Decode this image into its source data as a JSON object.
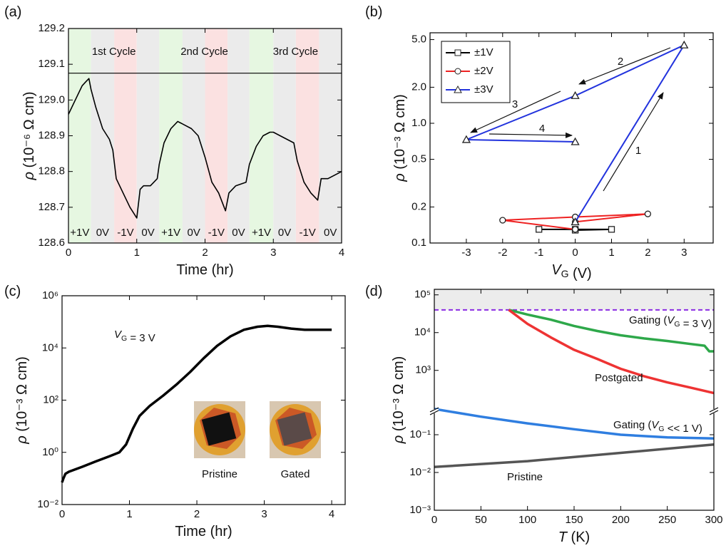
{
  "chart_data": [
    {
      "type": "line",
      "label": "(a)",
      "xlabel": "Time (hr)",
      "ylabel": "ρ (10⁻⁶ Ω cm)",
      "xlim": [
        0,
        4
      ],
      "ylim": [
        128.6,
        129.2
      ],
      "xticks": [
        0,
        1,
        2,
        3,
        4
      ],
      "yticks": [
        128.6,
        128.7,
        128.8,
        128.9,
        {
          "value": 129,
          "label": "129.0"
        },
        129.1,
        129.2
      ],
      "reference_line": 129.075,
      "cycles": [
        "1st Cycle",
        "2nd Cycle",
        "3rd Cycle"
      ],
      "regions": [
        {
          "start": 0,
          "end": 0.33,
          "label": "+1V",
          "color": "#e6f7e1"
        },
        {
          "start": 0.33,
          "end": 0.67,
          "label": "0V",
          "color": "#ebebeb"
        },
        {
          "start": 0.67,
          "end": 1.0,
          "label": "-1V",
          "color": "#fbe1e1"
        },
        {
          "start": 1.0,
          "end": 1.33,
          "label": "0V",
          "color": "#ebebeb"
        },
        {
          "start": 1.33,
          "end": 1.67,
          "label": "+1V",
          "color": "#e6f7e1"
        },
        {
          "start": 1.67,
          "end": 2.0,
          "label": "0V",
          "color": "#ebebeb"
        },
        {
          "start": 2.0,
          "end": 2.33,
          "label": "-1V",
          "color": "#fbe1e1"
        },
        {
          "start": 2.33,
          "end": 2.65,
          "label": "0V",
          "color": "#ebebeb"
        },
        {
          "start": 2.65,
          "end": 3.0,
          "label": "+1V",
          "color": "#e6f7e1"
        },
        {
          "start": 3.0,
          "end": 3.33,
          "label": "0V",
          "color": "#ebebeb"
        },
        {
          "start": 3.33,
          "end": 3.67,
          "label": "-1V",
          "color": "#fbe1e1"
        },
        {
          "start": 3.67,
          "end": 4.0,
          "label": "0V",
          "color": "#ebebeb"
        }
      ],
      "x": [
        0,
        0.1,
        0.2,
        0.25,
        0.3,
        0.33,
        0.4,
        0.5,
        0.6,
        0.65,
        0.7,
        0.8,
        0.9,
        1.0,
        1.05,
        1.1,
        1.2,
        1.3,
        1.33,
        1.4,
        1.5,
        1.6,
        1.7,
        1.8,
        1.9,
        2.0,
        2.1,
        2.2,
        2.3,
        2.35,
        2.45,
        2.6,
        2.65,
        2.75,
        2.85,
        2.95,
        3.0,
        3.1,
        3.3,
        3.35,
        3.45,
        3.55,
        3.65,
        3.7,
        3.8,
        3.9,
        4.0
      ],
      "values": [
        128.96,
        129.0,
        129.04,
        129.05,
        129.06,
        129.03,
        128.98,
        128.92,
        128.89,
        128.86,
        128.78,
        128.74,
        128.7,
        128.67,
        128.75,
        128.76,
        128.76,
        128.78,
        128.82,
        128.88,
        128.92,
        128.94,
        128.93,
        128.92,
        128.9,
        128.84,
        128.77,
        128.74,
        128.69,
        128.74,
        128.76,
        128.77,
        128.82,
        128.87,
        128.9,
        128.91,
        128.91,
        128.9,
        128.88,
        128.83,
        128.77,
        128.74,
        128.72,
        128.78,
        128.78,
        128.79,
        128.8
      ],
      "color": "#000000"
    },
    {
      "type": "line",
      "label": "(b)",
      "xlabel": "VG (V)",
      "ylabel": "ρ (10⁻³ Ω cm)",
      "xlim": [
        -4,
        3.8
      ],
      "ylim": [
        0.1,
        5.7
      ],
      "ylog": true,
      "xticks": [
        -3,
        -2,
        -1,
        0,
        1,
        2,
        3
      ],
      "yticks": [
        0.1,
        0.2,
        0.5,
        {
          "value": 1,
          "label": "1.0"
        },
        {
          "value": 2,
          "label": "2.0"
        },
        {
          "value": 5,
          "label": "5.0"
        }
      ],
      "legend": "upper left",
      "arrow_labels": [
        "1",
        "2",
        "3",
        "4"
      ],
      "series": [
        {
          "name": "±1V",
          "color": "#000000",
          "marker": "square",
          "x": [
            -1,
            0,
            1,
            0
          ],
          "values": [
            0.13,
            0.13,
            0.13,
            0.128
          ]
        },
        {
          "name": "±2V",
          "color": "#ee2222",
          "marker": "circle",
          "x": [
            0,
            2,
            0,
            -2,
            0
          ],
          "values": [
            0.15,
            0.175,
            0.165,
            0.155,
            0.13
          ]
        },
        {
          "name": "±3V",
          "color": "#2233dd",
          "marker": "triangle",
          "x": [
            0,
            3,
            0,
            -3,
            0
          ],
          "values": [
            0.15,
            4.5,
            1.7,
            0.73,
            0.7
          ]
        }
      ]
    },
    {
      "type": "line",
      "label": "(c)",
      "xlabel": "Time (hr)",
      "ylabel": "ρ (10⁻³ Ω cm)",
      "xlim": [
        0,
        4.2
      ],
      "ylim": [
        0.01,
        1000000
      ],
      "ylog": true,
      "xticks": [
        0,
        1,
        2,
        3,
        4
      ],
      "yticks": [
        {
          "value": 0.01,
          "label": "10⁻²"
        },
        {
          "value": 1,
          "label": "10⁰"
        },
        {
          "value": 100,
          "label": "10²"
        },
        {
          "value": 10000,
          "label": "10⁴"
        },
        {
          "value": 1000000,
          "label": "10⁶"
        }
      ],
      "annotation": "VG = 3 V",
      "inset_labels": [
        "Pristine",
        "Gated"
      ],
      "x": [
        0,
        0.02,
        0.05,
        0.1,
        0.3,
        0.5,
        0.7,
        0.85,
        0.95,
        1.05,
        1.15,
        1.3,
        1.5,
        1.7,
        1.9,
        2.1,
        2.3,
        2.5,
        2.7,
        2.9,
        3.05,
        3.2,
        3.4,
        3.6,
        4.0
      ],
      "values": [
        0.07,
        0.1,
        0.15,
        0.18,
        0.28,
        0.45,
        0.7,
        1.0,
        2,
        8,
        25,
        60,
        150,
        400,
        1200,
        4000,
        12000,
        28000,
        50000,
        65000,
        70000,
        65000,
        55000,
        50000,
        50000
      ],
      "color": "#000000"
    },
    {
      "type": "line",
      "label": "(d)",
      "xlabel": "T (K)",
      "ylabel": "ρ (10⁻³ Ω cm)",
      "xlim": [
        0,
        300
      ],
      "ylim": [
        0.001,
        140000
      ],
      "ylog": true,
      "ybreak": [
        0.42,
        83
      ],
      "threshold": 40000,
      "threshold_color": "#8a2be2",
      "xticks": [
        0,
        50,
        100,
        150,
        200,
        250,
        300
      ],
      "yticks": [
        {
          "value": 0.001,
          "label": "10⁻³"
        },
        {
          "value": 0.01,
          "label": "10⁻²"
        },
        {
          "value": 0.1,
          "label": "10⁻¹"
        },
        {
          "value": 1000,
          "label": "10³"
        },
        {
          "value": 10000,
          "label": "10⁴"
        },
        {
          "value": 100000,
          "label": "10⁵"
        }
      ],
      "series": [
        {
          "name": "Gating (VG = 3 V)",
          "color": "#2ea84a",
          "x": [
            80,
            100,
            125,
            150,
            175,
            200,
            225,
            250,
            275,
            290,
            295,
            300
          ],
          "values": [
            40000,
            30000,
            22000,
            15000,
            11000,
            8500,
            7000,
            6000,
            5000,
            4500,
            3200,
            3200
          ]
        },
        {
          "name": "Postgated",
          "color": "#ee3333",
          "x": [
            80,
            100,
            125,
            150,
            175,
            200,
            225,
            250,
            275,
            300
          ],
          "values": [
            40000,
            17000,
            7500,
            3500,
            2000,
            1100,
            700,
            480,
            350,
            250
          ]
        },
        {
          "name": "Gating (VG << 1 V)",
          "color": "#2f7ee0",
          "x": [
            0,
            50,
            100,
            150,
            200,
            250,
            300
          ],
          "values": [
            0.48,
            0.3,
            0.2,
            0.14,
            0.1,
            0.085,
            0.08
          ]
        },
        {
          "name": "Pristine",
          "color": "#555555",
          "x": [
            0,
            100,
            200,
            300
          ],
          "values": [
            0.014,
            0.02,
            0.033,
            0.055
          ]
        }
      ]
    }
  ]
}
